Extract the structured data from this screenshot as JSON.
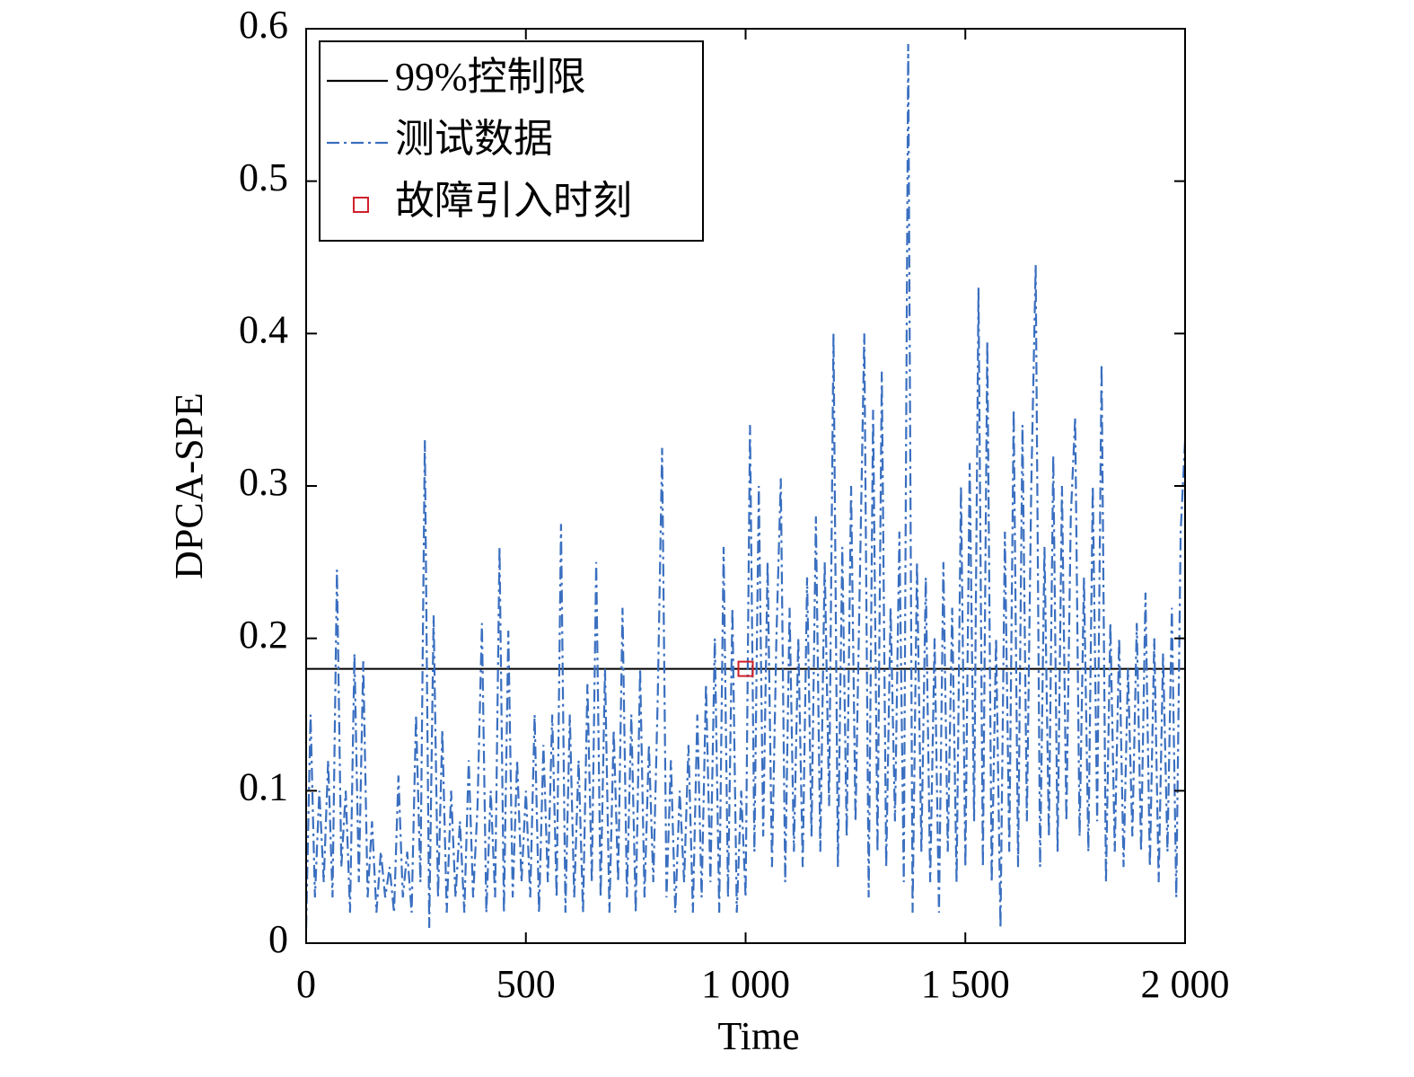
{
  "chart_data": {
    "type": "line",
    "xlabel": "Time",
    "ylabel": "DPCA-SPE",
    "xlim": [
      0,
      2000
    ],
    "ylim": [
      0,
      0.6
    ],
    "xticks": [
      0,
      500,
      {
        "value": 1000,
        "label": "1 000"
      },
      {
        "value": 1500,
        "label": "1 500"
      },
      {
        "value": 2000,
        "label": "2 000"
      }
    ],
    "yticks": [
      0,
      0.1,
      0.2,
      0.3,
      0.4,
      0.5,
      0.6
    ],
    "legend": "upper left",
    "series": [
      {
        "name": "99%控制限",
        "color": "#000000",
        "style": "solid",
        "x": [
          0,
          2000
        ],
        "values": [
          0.18,
          0.18
        ]
      },
      {
        "name": "测试数据",
        "color": "#3a6fc0",
        "style": "dashdot",
        "x": [
          0,
          10,
          20,
          30,
          40,
          50,
          60,
          70,
          80,
          90,
          100,
          110,
          120,
          130,
          140,
          150,
          160,
          170,
          180,
          190,
          200,
          210,
          220,
          230,
          240,
          250,
          260,
          270,
          280,
          290,
          300,
          310,
          320,
          330,
          340,
          350,
          360,
          370,
          380,
          390,
          400,
          410,
          420,
          430,
          440,
          450,
          460,
          470,
          480,
          490,
          500,
          510,
          520,
          530,
          540,
          550,
          560,
          570,
          580,
          590,
          600,
          610,
          620,
          630,
          640,
          650,
          660,
          670,
          680,
          690,
          700,
          710,
          720,
          730,
          740,
          750,
          760,
          770,
          780,
          790,
          800,
          810,
          820,
          830,
          840,
          850,
          860,
          870,
          880,
          890,
          900,
          910,
          920,
          930,
          940,
          950,
          960,
          970,
          980,
          990,
          1000,
          1010,
          1020,
          1030,
          1040,
          1050,
          1060,
          1070,
          1080,
          1090,
          1100,
          1110,
          1120,
          1130,
          1140,
          1150,
          1160,
          1170,
          1180,
          1190,
          1200,
          1210,
          1220,
          1230,
          1240,
          1250,
          1260,
          1270,
          1280,
          1290,
          1300,
          1310,
          1320,
          1330,
          1340,
          1350,
          1360,
          1370,
          1380,
          1390,
          1400,
          1410,
          1420,
          1430,
          1440,
          1450,
          1460,
          1470,
          1480,
          1490,
          1500,
          1510,
          1520,
          1530,
          1540,
          1550,
          1560,
          1570,
          1580,
          1590,
          1600,
          1610,
          1620,
          1630,
          1640,
          1650,
          1660,
          1670,
          1680,
          1690,
          1700,
          1710,
          1720,
          1730,
          1740,
          1750,
          1760,
          1770,
          1780,
          1790,
          1800,
          1810,
          1820,
          1830,
          1840,
          1850,
          1860,
          1870,
          1880,
          1890,
          1900,
          1910,
          1920,
          1930,
          1940,
          1950,
          1960,
          1970,
          1980,
          1990,
          2000
        ],
        "values": [
          0.01,
          0.15,
          0.03,
          0.1,
          0.04,
          0.12,
          0.03,
          0.245,
          0.05,
          0.1,
          0.02,
          0.19,
          0.04,
          0.185,
          0.03,
          0.08,
          0.02,
          0.06,
          0.03,
          0.05,
          0.02,
          0.11,
          0.03,
          0.06,
          0.02,
          0.15,
          0.04,
          0.33,
          0.01,
          0.215,
          0.03,
          0.14,
          0.02,
          0.1,
          0.03,
          0.08,
          0.02,
          0.12,
          0.03,
          0.09,
          0.21,
          0.02,
          0.1,
          0.03,
          0.26,
          0.02,
          0.205,
          0.03,
          0.12,
          0.04,
          0.1,
          0.03,
          0.15,
          0.02,
          0.13,
          0.04,
          0.15,
          0.03,
          0.275,
          0.02,
          0.15,
          0.03,
          0.12,
          0.02,
          0.17,
          0.04,
          0.25,
          0.03,
          0.18,
          0.02,
          0.14,
          0.04,
          0.22,
          0.03,
          0.15,
          0.02,
          0.18,
          0.03,
          0.13,
          0.04,
          0.16,
          0.325,
          0.03,
          0.12,
          0.02,
          0.1,
          0.04,
          0.13,
          0.02,
          0.15,
          0.03,
          0.17,
          0.04,
          0.2,
          0.02,
          0.26,
          0.03,
          0.22,
          0.02,
          0.1,
          0.03,
          0.34,
          0.06,
          0.3,
          0.07,
          0.25,
          0.05,
          0.2,
          0.305,
          0.04,
          0.22,
          0.06,
          0.2,
          0.05,
          0.24,
          0.07,
          0.28,
          0.06,
          0.25,
          0.09,
          0.4,
          0.05,
          0.26,
          0.07,
          0.3,
          0.08,
          0.24,
          0.4,
          0.03,
          0.35,
          0.06,
          0.375,
          0.05,
          0.22,
          0.08,
          0.27,
          0.04,
          0.59,
          0.02,
          0.25,
          0.06,
          0.24,
          0.04,
          0.2,
          0.02,
          0.25,
          0.06,
          0.22,
          0.04,
          0.3,
          0.05,
          0.315,
          0.08,
          0.43,
          0.05,
          0.395,
          0.04,
          0.2,
          0.01,
          0.27,
          0.06,
          0.35,
          0.05,
          0.34,
          0.08,
          0.3,
          0.445,
          0.05,
          0.26,
          0.07,
          0.32,
          0.06,
          0.3,
          0.08,
          0.28,
          0.345,
          0.07,
          0.24,
          0.06,
          0.3,
          0.08,
          0.38,
          0.04,
          0.21,
          0.06,
          0.2,
          0.05,
          0.18,
          0.07,
          0.21,
          0.06,
          0.23,
          0.05,
          0.2,
          0.04,
          0.19,
          0.06,
          0.22,
          0.03,
          0.27,
          0.33
        ]
      },
      {
        "name": "故障引入时刻",
        "color": "#d0202a",
        "style": "marker",
        "x": [
          1000
        ],
        "values": [
          0.18
        ]
      }
    ]
  }
}
